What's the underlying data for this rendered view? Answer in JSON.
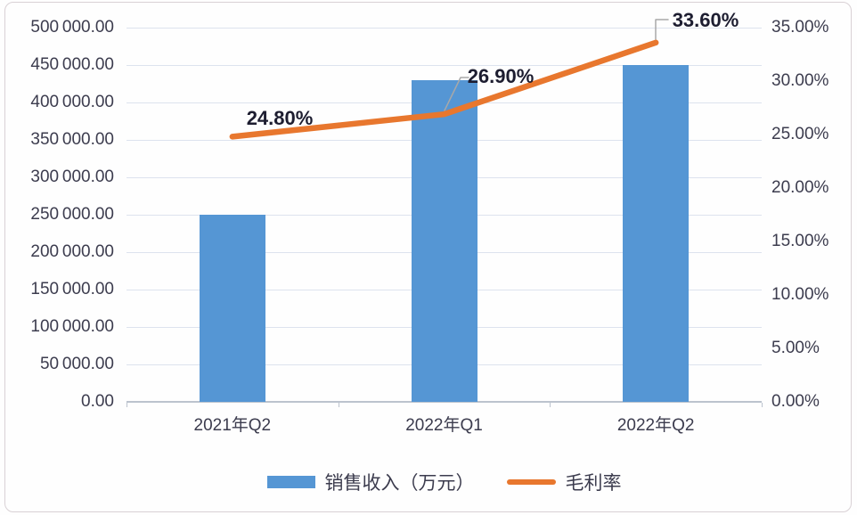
{
  "chart_data": {
    "type": "combo",
    "title": "",
    "categories": [
      "2021年Q2",
      "2022年Q1",
      "2022年Q2"
    ],
    "series": [
      {
        "name": "销售收入（万元）",
        "type": "bar",
        "axis": "left",
        "color": "#5596D4",
        "values": [
          250000,
          430000,
          450000
        ]
      },
      {
        "name": "毛利率",
        "type": "line",
        "axis": "right",
        "color": "#E8772E",
        "values": [
          24.8,
          26.9,
          33.6
        ],
        "data_labels": [
          "24.80%",
          "26.90%",
          "33.60%"
        ]
      }
    ],
    "left_axis": {
      "min": 0,
      "max": 500000,
      "step": 50000,
      "tick_labels": [
        "500 000.00",
        "450 000.00",
        "400 000.00",
        "350 000.00",
        "300 000.00",
        "250 000.00",
        "200 000.00",
        "150 000.00",
        "100 000.00",
        "50 000.00",
        "0.00"
      ]
    },
    "right_axis": {
      "min": 0,
      "max": 35,
      "step": 5,
      "tick_labels": [
        "35.00%",
        "30.00%",
        "25.00%",
        "20.00%",
        "15.00%",
        "10.00%",
        "5.00%",
        "0.00%"
      ]
    },
    "grid": true,
    "legend": {
      "position": "bottom",
      "entries": [
        "销售收入（万元）",
        "毛利率"
      ]
    },
    "colors": {
      "gridline": "#DDE3EE",
      "axis_line": "#BCC3CE",
      "axis_text": "#3C3C4E",
      "data_label_text": "#1D1D30",
      "leader_line": "#A8A8A8"
    }
  }
}
